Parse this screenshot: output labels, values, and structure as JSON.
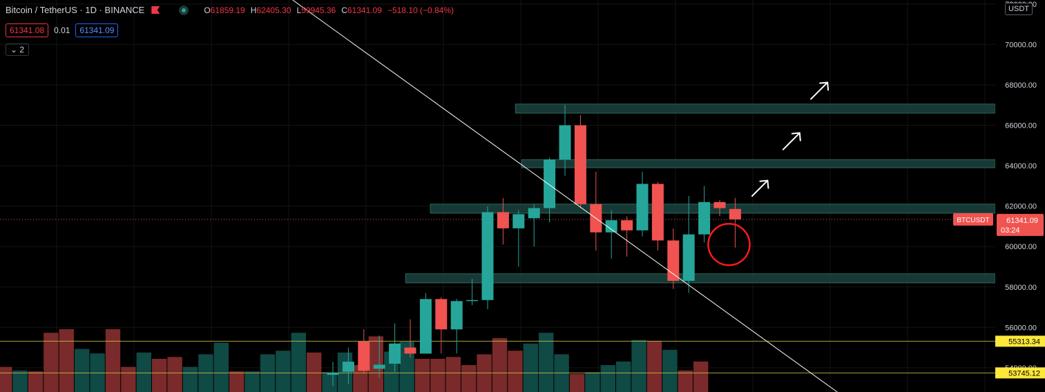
{
  "header": {
    "symbol": "Bitcoin / TetherUS · 1D · BINANCE",
    "ohlc": {
      "o_label": "O",
      "o": "61859.19",
      "h_label": "H",
      "h": "62405.30",
      "l_label": "L",
      "l": "59945.36",
      "c_label": "C",
      "c": "61341.09",
      "change": "−518.10 (−0.84%)"
    },
    "sell_price": "61341.08",
    "spread": "0.01",
    "buy_price": "61341.09",
    "collapse_count": "2",
    "currency_unit": "USDT"
  },
  "colors": {
    "up": "#26a69a",
    "down": "#f05350",
    "vol_up": "#0f4a45",
    "vol_down": "#7a2a2a",
    "zone_fill": "#193d38",
    "zone_stroke": "#2f6b62",
    "hline": "#d6c84a",
    "trendline": "#ffffff",
    "circle": "#ff1a1a",
    "label_yellow": "#fce83a"
  },
  "chart_data": {
    "type": "candlestick",
    "symbol": "BTCUSDT",
    "y_ticks": [
      72000,
      70000,
      68000,
      66000,
      64000,
      62000,
      60000,
      58000,
      56000,
      54000
    ],
    "y_tick_labels": [
      "72000.00",
      "70000.00",
      "68000.00",
      "66000.00",
      "64000.00",
      "62000.00",
      "60000.00",
      "58000.00",
      "56000.00",
      "54000.00"
    ],
    "ylim": [
      52800,
      72200
    ],
    "candles": [
      {
        "o": 53650,
        "h": 54300,
        "l": 53100,
        "c": 53750
      },
      {
        "o": 53800,
        "h": 55000,
        "l": 53200,
        "c": 54300
      },
      {
        "o": 55300,
        "h": 55900,
        "l": 53700,
        "c": 53850
      },
      {
        "o": 53950,
        "h": 55600,
        "l": 53500,
        "c": 54150
      },
      {
        "o": 54200,
        "h": 56200,
        "l": 53800,
        "c": 55200
      },
      {
        "o": 55000,
        "h": 56400,
        "l": 54500,
        "c": 54700
      },
      {
        "o": 54700,
        "h": 57700,
        "l": 54800,
        "c": 57400
      },
      {
        "o": 57400,
        "h": 57500,
        "l": 54700,
        "c": 55900
      },
      {
        "o": 55900,
        "h": 57400,
        "l": 54700,
        "c": 57300
      },
      {
        "o": 57300,
        "h": 58400,
        "l": 57100,
        "c": 57350
      },
      {
        "o": 57350,
        "h": 62000,
        "l": 56900,
        "c": 61700
      },
      {
        "o": 61700,
        "h": 62400,
        "l": 60100,
        "c": 60900
      },
      {
        "o": 60900,
        "h": 61800,
        "l": 59000,
        "c": 61600
      },
      {
        "o": 61400,
        "h": 62100,
        "l": 60000,
        "c": 61900
      },
      {
        "o": 61900,
        "h": 64400,
        "l": 61200,
        "c": 64300
      },
      {
        "o": 64300,
        "h": 67000,
        "l": 63500,
        "c": 66000
      },
      {
        "o": 66000,
        "h": 66500,
        "l": 61900,
        "c": 62100
      },
      {
        "o": 62100,
        "h": 63700,
        "l": 59800,
        "c": 60700
      },
      {
        "o": 60700,
        "h": 61800,
        "l": 59400,
        "c": 61300
      },
      {
        "o": 61300,
        "h": 61500,
        "l": 59500,
        "c": 60800
      },
      {
        "o": 60800,
        "h": 63700,
        "l": 60500,
        "c": 63100
      },
      {
        "o": 63100,
        "h": 63200,
        "l": 59800,
        "c": 60300
      },
      {
        "o": 60300,
        "h": 60900,
        "l": 57900,
        "c": 58300
      },
      {
        "o": 58300,
        "h": 62500,
        "l": 57700,
        "c": 60600
      },
      {
        "o": 60600,
        "h": 63000,
        "l": 60200,
        "c": 62200
      },
      {
        "o": 62200,
        "h": 62300,
        "l": 61500,
        "c": 61900
      },
      {
        "o": 61859.19,
        "h": 62405.3,
        "l": 59945.36,
        "c": 61341.09
      }
    ],
    "volume_bars": [
      {
        "v": 0.28,
        "d": 1
      },
      {
        "v": 0.24,
        "d": 0
      },
      {
        "v": 0.23,
        "d": 1
      },
      {
        "v": 0.66,
        "d": 1
      },
      {
        "v": 0.7,
        "d": 1
      },
      {
        "v": 0.48,
        "d": 0
      },
      {
        "v": 0.43,
        "d": 0
      },
      {
        "v": 0.7,
        "d": 1
      },
      {
        "v": 0.28,
        "d": 1
      },
      {
        "v": 0.44,
        "d": 0
      },
      {
        "v": 0.37,
        "d": 1
      },
      {
        "v": 0.39,
        "d": 1
      },
      {
        "v": 0.28,
        "d": 0
      },
      {
        "v": 0.42,
        "d": 0
      },
      {
        "v": 0.55,
        "d": 0
      },
      {
        "v": 0.23,
        "d": 1
      },
      {
        "v": 0.23,
        "d": 0
      },
      {
        "v": 0.42,
        "d": 0
      },
      {
        "v": 0.46,
        "d": 0
      },
      {
        "v": 0.66,
        "d": 0
      },
      {
        "v": 0.44,
        "d": 1
      },
      {
        "v": 0.22,
        "d": 0
      },
      {
        "v": 0.44,
        "d": 0
      },
      {
        "v": 0.3,
        "d": 1
      },
      {
        "v": 0.62,
        "d": 1
      },
      {
        "v": 0.45,
        "d": 0
      },
      {
        "v": 0.56,
        "d": 0
      },
      {
        "v": 0.37,
        "d": 1
      },
      {
        "v": 0.37,
        "d": 1
      },
      {
        "v": 0.39,
        "d": 1
      },
      {
        "v": 0.3,
        "d": 1
      },
      {
        "v": 0.42,
        "d": 1
      },
      {
        "v": 0.6,
        "d": 1
      },
      {
        "v": 0.46,
        "d": 1
      },
      {
        "v": 0.54,
        "d": 0
      },
      {
        "v": 0.66,
        "d": 0
      },
      {
        "v": 0.42,
        "d": 0
      },
      {
        "v": 0.2,
        "d": 1
      },
      {
        "v": 0.22,
        "d": 0
      },
      {
        "v": 0.3,
        "d": 0
      },
      {
        "v": 0.34,
        "d": 0
      },
      {
        "v": 0.58,
        "d": 0
      },
      {
        "v": 0.57,
        "d": 1
      },
      {
        "v": 0.47,
        "d": 0
      },
      {
        "v": 0.24,
        "d": 1
      },
      {
        "v": 0.34,
        "d": 1
      }
    ],
    "zones": [
      {
        "y1": 66600,
        "y2": 67050
      },
      {
        "y1": 63900,
        "y2": 64300
      },
      {
        "y1": 61650,
        "y2": 62100
      },
      {
        "y1": 58200,
        "y2": 58650
      }
    ],
    "horizontal_lines": [
      {
        "value": 55313.34,
        "label": "55313.34"
      },
      {
        "value": 53745.12,
        "label": "53745.12"
      }
    ],
    "current_price": {
      "value": 61341.09,
      "label": "61341.09",
      "countdown": "03:24",
      "symbol_label": "BTCUSDT"
    },
    "trendline": {
      "p1": [
        -2.2,
        72200
      ],
      "p2": [
        33,
        52800
      ]
    },
    "annotation_circle": {
      "index": 25.6,
      "value": 60100
    },
    "arrows": [
      {
        "index": 27.5,
        "value": 62500,
        "size": "small"
      },
      {
        "index": 29.5,
        "value": 64800,
        "size": "medium"
      },
      {
        "index": 31.3,
        "value": 67300,
        "size": "large"
      }
    ]
  }
}
